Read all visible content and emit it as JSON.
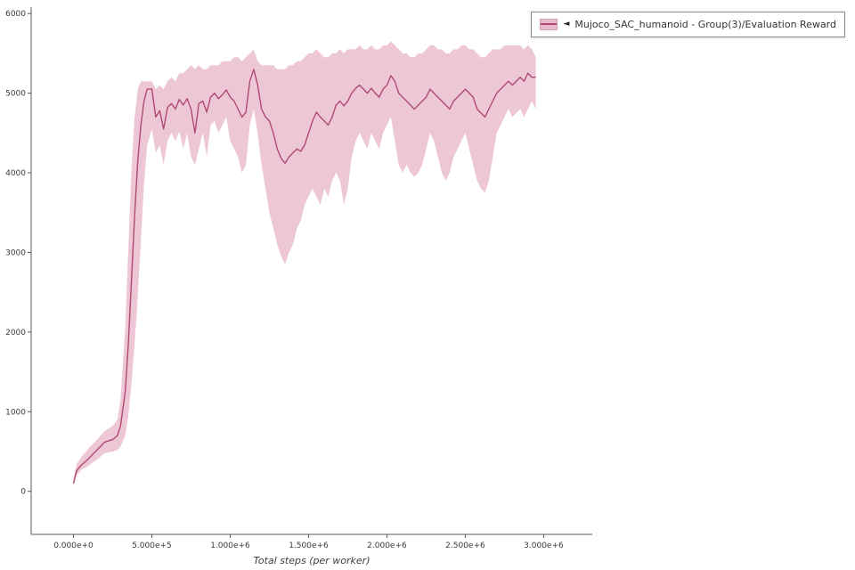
{
  "legend": {
    "items": [
      {
        "collapse_icon": "◄",
        "label": "Mujoco_SAC_humanoid - Group(3)/Evaluation Reward",
        "line_color": "#b04a72",
        "band_color": "#e9b9cc"
      }
    ]
  },
  "chart_data": {
    "type": "line",
    "title": "",
    "xlabel": "Total steps (per worker)",
    "ylabel": "",
    "grid": false,
    "legend_position": "top-right",
    "xlim": [
      -270000,
      3310000
    ],
    "ylim": [
      -540,
      6080
    ],
    "x_ticks": [
      {
        "v": 0,
        "label": "0.000e+0"
      },
      {
        "v": 500000,
        "label": "5.000e+5"
      },
      {
        "v": 1000000,
        "label": "1.000e+6"
      },
      {
        "v": 1500000,
        "label": "1.500e+6"
      },
      {
        "v": 2000000,
        "label": "2.000e+6"
      },
      {
        "v": 2500000,
        "label": "2.500e+6"
      },
      {
        "v": 3000000,
        "label": "3.000e+6"
      }
    ],
    "y_ticks": [
      {
        "v": 0,
        "label": "0"
      },
      {
        "v": 1000,
        "label": "1000"
      },
      {
        "v": 2000,
        "label": "2000"
      },
      {
        "v": 3000,
        "label": "3000"
      },
      {
        "v": 4000,
        "label": "4000"
      },
      {
        "v": 5000,
        "label": "5000"
      },
      {
        "v": 6000,
        "label": "6000"
      }
    ],
    "series": [
      {
        "name": "Mujoco_SAC_humanoid - Group(3)/Evaluation Reward",
        "color": "#b04a72",
        "band_color": "#e9b9cc",
        "x": [
          0,
          20000,
          50000,
          80000,
          100000,
          150000,
          200000,
          250000,
          280000,
          300000,
          330000,
          350000,
          370000,
          390000,
          410000,
          430000,
          450000,
          470000,
          500000,
          525000,
          550000,
          575000,
          600000,
          625000,
          650000,
          675000,
          700000,
          725000,
          750000,
          775000,
          800000,
          825000,
          850000,
          875000,
          900000,
          925000,
          950000,
          975000,
          1000000,
          1025000,
          1050000,
          1075000,
          1100000,
          1125000,
          1150000,
          1175000,
          1200000,
          1225000,
          1250000,
          1275000,
          1300000,
          1325000,
          1350000,
          1375000,
          1400000,
          1425000,
          1450000,
          1475000,
          1500000,
          1525000,
          1550000,
          1575000,
          1600000,
          1625000,
          1650000,
          1675000,
          1700000,
          1725000,
          1750000,
          1775000,
          1800000,
          1825000,
          1850000,
          1875000,
          1900000,
          1925000,
          1950000,
          1975000,
          2000000,
          2025000,
          2050000,
          2075000,
          2100000,
          2125000,
          2150000,
          2175000,
          2200000,
          2225000,
          2250000,
          2275000,
          2300000,
          2325000,
          2350000,
          2375000,
          2400000,
          2425000,
          2450000,
          2475000,
          2500000,
          2525000,
          2550000,
          2575000,
          2600000,
          2625000,
          2650000,
          2675000,
          2700000,
          2725000,
          2750000,
          2775000,
          2800000,
          2825000,
          2850000,
          2875000,
          2900000,
          2925000,
          2950000
        ],
        "mean": [
          100,
          260,
          330,
          380,
          420,
          520,
          620,
          650,
          700,
          820,
          1250,
          1850,
          2650,
          3450,
          4150,
          4600,
          4900,
          5050,
          5050,
          4700,
          4780,
          4550,
          4820,
          4870,
          4800,
          4920,
          4850,
          4930,
          4800,
          4500,
          4870,
          4900,
          4760,
          4950,
          5000,
          4930,
          4980,
          5040,
          4950,
          4900,
          4800,
          4700,
          4760,
          5150,
          5300,
          5100,
          4800,
          4700,
          4650,
          4500,
          4300,
          4180,
          4120,
          4200,
          4250,
          4300,
          4270,
          4350,
          4500,
          4650,
          4760,
          4700,
          4650,
          4600,
          4700,
          4850,
          4900,
          4840,
          4900,
          5000,
          5060,
          5100,
          5050,
          5000,
          5060,
          5000,
          4950,
          5050,
          5100,
          5220,
          5150,
          5000,
          4950,
          4900,
          4850,
          4800,
          4850,
          4900,
          4950,
          5050,
          5000,
          4950,
          4900,
          4850,
          4800,
          4900,
          4950,
          5000,
          5050,
          5000,
          4950,
          4800,
          4750,
          4700,
          4800,
          4900,
          5000,
          5050,
          5100,
          5150,
          5100,
          5150,
          5200,
          5150,
          5250,
          5200,
          5200
        ],
        "lower": [
          70,
          200,
          270,
          300,
          330,
          400,
          480,
          500,
          520,
          560,
          700,
          950,
          1350,
          1850,
          2450,
          3150,
          3850,
          4350,
          4550,
          4250,
          4350,
          4100,
          4400,
          4500,
          4400,
          4520,
          4300,
          4500,
          4200,
          4100,
          4300,
          4500,
          4200,
          4600,
          4650,
          4500,
          4600,
          4700,
          4400,
          4300,
          4200,
          4000,
          4100,
          4600,
          4800,
          4500,
          4100,
          3800,
          3500,
          3300,
          3100,
          2950,
          2850,
          3000,
          3100,
          3300,
          3400,
          3600,
          3700,
          3800,
          3700,
          3600,
          3800,
          3700,
          3900,
          4000,
          3900,
          3600,
          3800,
          4200,
          4400,
          4500,
          4400,
          4300,
          4500,
          4400,
          4300,
          4500,
          4600,
          4700,
          4400,
          4100,
          4000,
          4100,
          4000,
          3950,
          4000,
          4100,
          4300,
          4500,
          4400,
          4200,
          4000,
          3900,
          4000,
          4200,
          4300,
          4400,
          4500,
          4300,
          4100,
          3900,
          3800,
          3750,
          3900,
          4200,
          4500,
          4600,
          4700,
          4800,
          4700,
          4750,
          4800,
          4700,
          4800,
          4900,
          4800
        ],
        "upper": [
          150,
          340,
          430,
          500,
          550,
          650,
          760,
          820,
          900,
          1150,
          2050,
          3050,
          4050,
          4700,
          5050,
          5150,
          5150,
          5150,
          5150,
          5050,
          5100,
          5050,
          5150,
          5200,
          5150,
          5250,
          5250,
          5300,
          5350,
          5300,
          5350,
          5300,
          5300,
          5350,
          5350,
          5350,
          5400,
          5400,
          5400,
          5450,
          5450,
          5400,
          5450,
          5500,
          5550,
          5400,
          5350,
          5350,
          5350,
          5350,
          5300,
          5300,
          5300,
          5350,
          5350,
          5400,
          5400,
          5450,
          5500,
          5500,
          5550,
          5500,
          5450,
          5450,
          5500,
          5500,
          5550,
          5500,
          5550,
          5550,
          5550,
          5600,
          5550,
          5550,
          5600,
          5550,
          5550,
          5600,
          5600,
          5650,
          5600,
          5550,
          5500,
          5500,
          5450,
          5450,
          5500,
          5500,
          5550,
          5600,
          5600,
          5550,
          5550,
          5500,
          5500,
          5550,
          5550,
          5600,
          5600,
          5550,
          5550,
          5500,
          5450,
          5450,
          5500,
          5550,
          5550,
          5550,
          5600,
          5600,
          5600,
          5600,
          5600,
          5550,
          5600,
          5550,
          5450
        ]
      }
    ],
    "axis_color": "#55585c",
    "tick_color": "#3a3a3a"
  }
}
